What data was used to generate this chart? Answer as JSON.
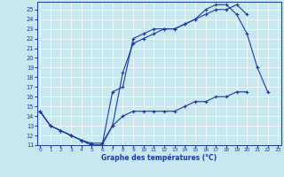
{
  "bg_color": "#c8e8f0",
  "plot_bg_color": "#c8e8f0",
  "line_color": "#1a3a9e",
  "grid_color": "#ffffff",
  "xlabel": "Graphe des températures (°C)",
  "xlim": [
    -0.3,
    23.3
  ],
  "ylim": [
    11,
    25.8
  ],
  "xticks": [
    0,
    1,
    2,
    3,
    4,
    5,
    6,
    7,
    8,
    9,
    10,
    11,
    12,
    13,
    14,
    15,
    16,
    17,
    18,
    19,
    20,
    21,
    22,
    23
  ],
  "yticks": [
    11,
    12,
    13,
    14,
    15,
    16,
    17,
    18,
    19,
    20,
    21,
    22,
    23,
    24,
    25
  ],
  "line1_x": [
    0,
    1,
    2,
    3,
    4,
    5,
    6,
    7,
    8,
    9,
    10,
    11,
    12,
    13,
    14,
    15,
    16,
    17,
    18,
    19,
    20,
    21,
    22
  ],
  "line1_y": [
    14.5,
    13.0,
    12.5,
    12.0,
    11.5,
    11.0,
    11.0,
    13.0,
    18.5,
    21.5,
    22.0,
    22.5,
    23.0,
    23.0,
    23.5,
    24.0,
    25.0,
    25.5,
    25.5,
    24.5,
    22.5,
    19.0,
    16.5
  ],
  "line2_x": [
    0,
    1,
    2,
    3,
    4,
    5,
    6,
    7,
    8,
    9,
    10,
    11,
    12,
    13,
    14,
    15,
    16,
    17,
    18,
    19,
    20
  ],
  "line2_y": [
    14.5,
    13.0,
    12.5,
    12.0,
    11.5,
    11.0,
    11.0,
    16.5,
    17.0,
    22.0,
    22.5,
    23.0,
    23.0,
    23.0,
    23.5,
    24.0,
    24.5,
    25.0,
    25.0,
    25.5,
    24.5
  ],
  "line3_x": [
    0,
    1,
    2,
    3,
    4,
    5,
    6,
    7,
    8,
    9,
    10,
    11,
    12,
    13,
    14,
    15,
    16,
    17,
    18,
    19,
    20
  ],
  "line3_y": [
    14.5,
    13.0,
    12.5,
    12.0,
    11.5,
    11.2,
    11.2,
    13.0,
    14.0,
    14.5,
    14.5,
    14.5,
    14.5,
    14.5,
    15.0,
    15.5,
    15.5,
    16.0,
    16.0,
    16.5,
    16.5
  ]
}
